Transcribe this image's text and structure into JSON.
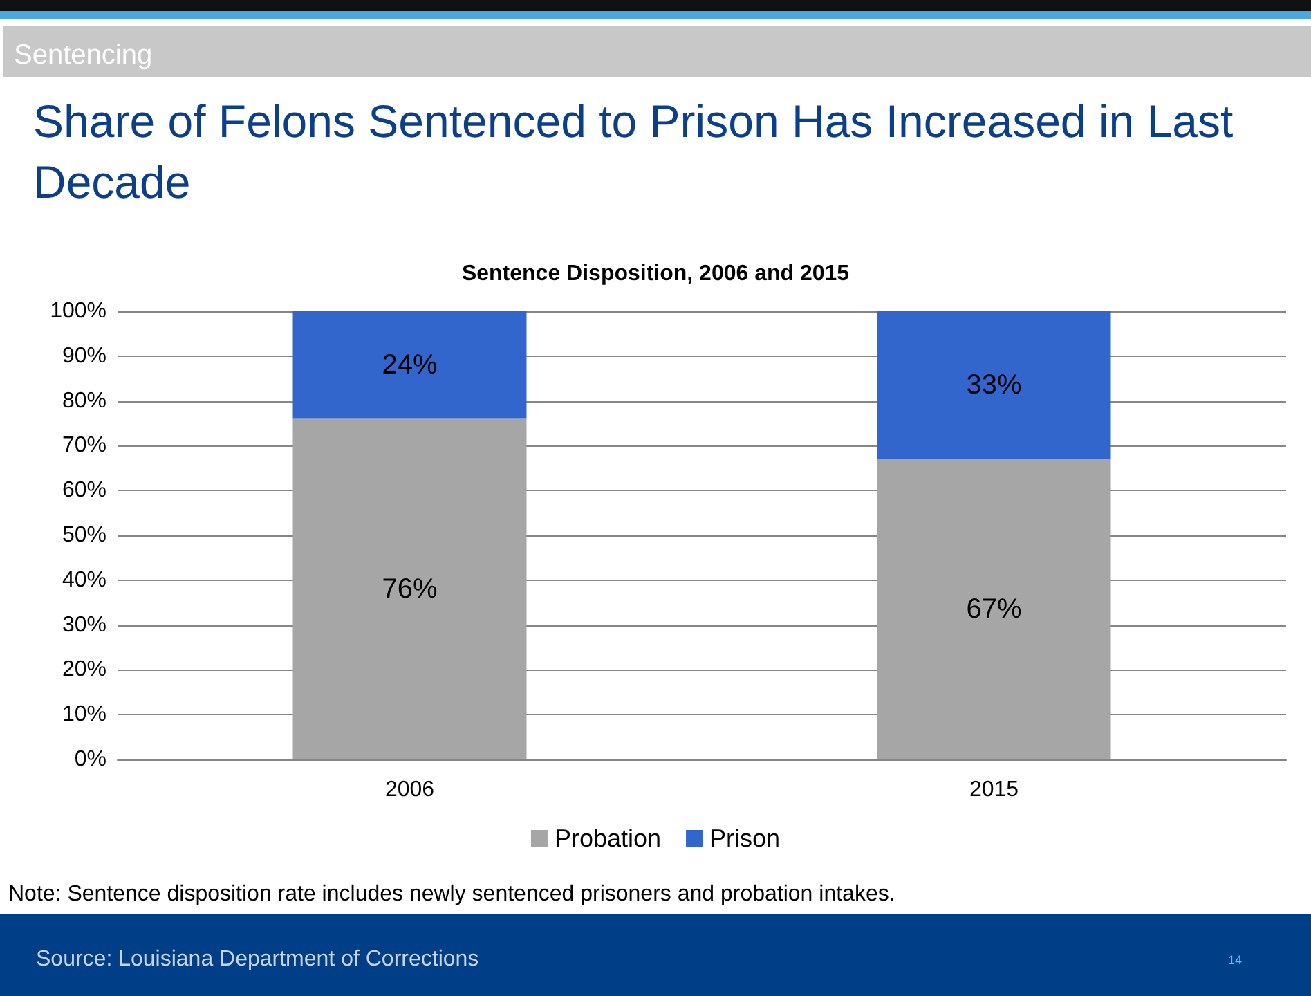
{
  "chart_data": {
    "type": "bar",
    "title": "Share of Felons Sentenced to Prison Has Increased in Last Decade",
    "subtitle": "Sentence Disposition, 2006 and 2015",
    "categories": [
      "2006",
      "2015"
    ],
    "stacked": true,
    "series": [
      {
        "name": "Probation",
        "color": "#a6a6a6",
        "values": [
          76,
          67
        ],
        "value_labels": [
          "76%",
          "67%"
        ]
      },
      {
        "name": "Prison",
        "color": "#3366cc",
        "values": [
          24,
          33
        ],
        "value_labels": [
          "24%",
          "33%"
        ]
      }
    ],
    "ylim": [
      0,
      100
    ],
    "yticks": [
      {
        "value": 0,
        "label": "0%"
      },
      {
        "value": 10,
        "label": "10%"
      },
      {
        "value": 20,
        "label": "20%"
      },
      {
        "value": 30,
        "label": "30%"
      },
      {
        "value": 40,
        "label": "40%"
      },
      {
        "value": 50,
        "label": "50%"
      },
      {
        "value": 60,
        "label": "60%"
      },
      {
        "value": 70,
        "label": "70%"
      },
      {
        "value": 80,
        "label": "80%"
      },
      {
        "value": 90,
        "label": "90%"
      },
      {
        "value": 100,
        "label": "100%"
      }
    ],
    "grid": "y",
    "legend": "bottom",
    "annotations": [
      "Sentencing",
      "Note: Sentence disposition rate includes newly sentenced prisoners and probation intakes.",
      "Source: Louisiana Department of Corrections",
      "14"
    ]
  }
}
